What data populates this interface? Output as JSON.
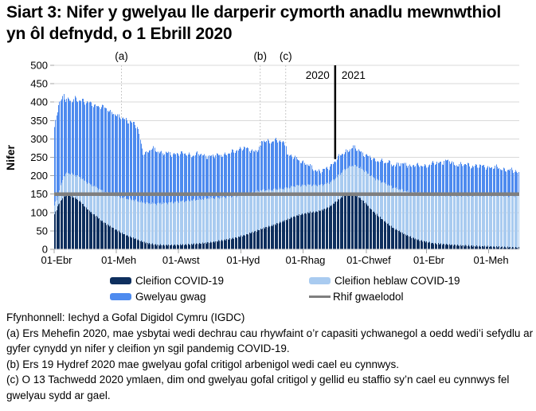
{
  "title": {
    "text": "Siart 3: Nifer y gwelyau lle darperir cymorth anadlu mewnwthiol yn ôl defnydd, o 1 Ebrill 2020"
  },
  "chart_data": {
    "type": "bar",
    "stacked": true,
    "title": "Siart 3: Nifer y gwelyau lle darperir cymorth anadlu mewnwthiol yn ôl defnydd, o 1 Ebrill 2020",
    "ylabel": "Nifer",
    "ylim": [
      0,
      500
    ],
    "yticks": [
      0,
      50,
      100,
      150,
      200,
      250,
      300,
      350,
      400,
      450,
      500
    ],
    "grid": "horizontal",
    "legend_position": "bottom",
    "start_date": "01 Ebrill 2020",
    "n_days": 456,
    "xticks": [
      {
        "day": 0,
        "label": "01-Ebr"
      },
      {
        "day": 61,
        "label": "01-Meh"
      },
      {
        "day": 122,
        "label": "01-Awst"
      },
      {
        "day": 183,
        "label": "01-Hyd"
      },
      {
        "day": 244,
        "label": "01-Rhag"
      },
      {
        "day": 306,
        "label": "01-Chwef"
      },
      {
        "day": 365,
        "label": "01-Ebr"
      },
      {
        "day": 426,
        "label": "01-Meh"
      }
    ],
    "annotations": [
      {
        "label": "(a)",
        "day": 66
      },
      {
        "label": "(b)",
        "day": 202
      },
      {
        "label": "(c)",
        "day": 227
      }
    ],
    "year_divider": {
      "day": 275.5,
      "left_label": "2020",
      "right_label": "2021",
      "color": "#000000"
    },
    "baseline": {
      "label": "Rhif gwaelodol",
      "value": 150,
      "color": "#7F7F7F"
    },
    "colors": {
      "covid": "#0E2F5E",
      "noncovid": "#A9CBF0",
      "empty": "#4E8BEF",
      "grid": "#D9D9D9",
      "tick": "#A6A6A6",
      "dotted": "#C8C8C8"
    },
    "series": [
      {
        "name": "Cleifion COVID-19",
        "color": "#0E2F5E",
        "keypoints": [
          [
            0,
            95
          ],
          [
            4,
            122
          ],
          [
            9,
            143
          ],
          [
            13,
            150
          ],
          [
            17,
            144
          ],
          [
            21,
            138
          ],
          [
            26,
            128
          ],
          [
            30,
            115
          ],
          [
            35,
            102
          ],
          [
            40,
            92
          ],
          [
            45,
            80
          ],
          [
            50,
            70
          ],
          [
            55,
            62
          ],
          [
            61,
            52
          ],
          [
            66,
            44
          ],
          [
            72,
            36
          ],
          [
            78,
            30
          ],
          [
            85,
            22
          ],
          [
            92,
            16
          ],
          [
            100,
            12
          ],
          [
            110,
            11
          ],
          [
            120,
            12
          ],
          [
            132,
            13
          ],
          [
            140,
            15
          ],
          [
            148,
            17
          ],
          [
            156,
            20
          ],
          [
            164,
            24
          ],
          [
            172,
            28
          ],
          [
            180,
            33
          ],
          [
            186,
            38
          ],
          [
            192,
            44
          ],
          [
            198,
            50
          ],
          [
            203,
            56
          ],
          [
            208,
            60
          ],
          [
            214,
            65
          ],
          [
            220,
            72
          ],
          [
            226,
            78
          ],
          [
            232,
            86
          ],
          [
            238,
            92
          ],
          [
            244,
            96
          ],
          [
            250,
            100
          ],
          [
            256,
            102
          ],
          [
            262,
            106
          ],
          [
            267,
            112
          ],
          [
            272,
            120
          ],
          [
            276,
            130
          ],
          [
            280,
            138
          ],
          [
            284,
            146
          ],
          [
            288,
            150
          ],
          [
            292,
            152
          ],
          [
            296,
            146
          ],
          [
            300,
            138
          ],
          [
            304,
            128
          ],
          [
            308,
            116
          ],
          [
            312,
            104
          ],
          [
            316,
            94
          ],
          [
            320,
            84
          ],
          [
            324,
            75
          ],
          [
            328,
            66
          ],
          [
            332,
            58
          ],
          [
            336,
            52
          ],
          [
            340,
            46
          ],
          [
            344,
            40
          ],
          [
            348,
            35
          ],
          [
            352,
            30
          ],
          [
            356,
            26
          ],
          [
            360,
            23
          ],
          [
            365,
            20
          ],
          [
            370,
            17
          ],
          [
            375,
            15
          ],
          [
            380,
            14
          ],
          [
            385,
            13
          ],
          [
            390,
            12
          ],
          [
            395,
            11
          ],
          [
            400,
            10
          ],
          [
            410,
            9
          ],
          [
            420,
            8
          ],
          [
            430,
            7
          ],
          [
            440,
            6
          ],
          [
            450,
            5
          ],
          [
            455,
            5
          ]
        ]
      },
      {
        "name": "Cleifion heblaw COVID-19",
        "color": "#A9CBF0",
        "keypoints": [
          [
            0,
            22
          ],
          [
            5,
            35
          ],
          [
            9,
            56
          ],
          [
            13,
            58
          ],
          [
            20,
            62
          ],
          [
            30,
            70
          ],
          [
            40,
            78
          ],
          [
            50,
            85
          ],
          [
            61,
            93
          ],
          [
            70,
            100
          ],
          [
            80,
            105
          ],
          [
            90,
            108
          ],
          [
            100,
            112
          ],
          [
            110,
            115
          ],
          [
            120,
            117
          ],
          [
            130,
            119
          ],
          [
            140,
            120
          ],
          [
            150,
            121
          ],
          [
            160,
            118
          ],
          [
            170,
            116
          ],
          [
            180,
            113
          ],
          [
            190,
            110
          ],
          [
            200,
            106
          ],
          [
            206,
            102
          ],
          [
            212,
            98
          ],
          [
            220,
            92
          ],
          [
            228,
            86
          ],
          [
            236,
            82
          ],
          [
            244,
            78
          ],
          [
            252,
            74
          ],
          [
            260,
            70
          ],
          [
            268,
            66
          ],
          [
            276,
            64
          ],
          [
            284,
            70
          ],
          [
            290,
            74
          ],
          [
            296,
            80
          ],
          [
            302,
            84
          ],
          [
            308,
            88
          ],
          [
            314,
            94
          ],
          [
            320,
            100
          ],
          [
            326,
            106
          ],
          [
            332,
            110
          ],
          [
            338,
            114
          ],
          [
            344,
            118
          ],
          [
            350,
            122
          ],
          [
            356,
            126
          ],
          [
            362,
            128
          ],
          [
            368,
            130
          ],
          [
            376,
            132
          ],
          [
            384,
            134
          ],
          [
            392,
            135
          ],
          [
            400,
            136
          ],
          [
            410,
            137
          ],
          [
            420,
            138
          ],
          [
            430,
            139
          ],
          [
            440,
            140
          ],
          [
            455,
            140
          ]
        ]
      },
      {
        "name": "Gwelyau gwag",
        "color": "#4E8BEF",
        "derived": "total minus patients"
      }
    ],
    "total_keypoints": [
      [
        0,
        330
      ],
      [
        2,
        365
      ],
      [
        4,
        388
      ],
      [
        6,
        400
      ],
      [
        9,
        423
      ],
      [
        11,
        406
      ],
      [
        14,
        410
      ],
      [
        17,
        400
      ],
      [
        20,
        408
      ],
      [
        23,
        404
      ],
      [
        27,
        408
      ],
      [
        30,
        400
      ],
      [
        34,
        396
      ],
      [
        38,
        392
      ],
      [
        42,
        390
      ],
      [
        46,
        388
      ],
      [
        50,
        382
      ],
      [
        54,
        374
      ],
      [
        58,
        372
      ],
      [
        61,
        363
      ],
      [
        64,
        358
      ],
      [
        67,
        354
      ],
      [
        70,
        352
      ],
      [
        74,
        348
      ],
      [
        78,
        342
      ],
      [
        81,
        330
      ],
      [
        83,
        310
      ],
      [
        85,
        286
      ],
      [
        87,
        264
      ],
      [
        90,
        262
      ],
      [
        93,
        268
      ],
      [
        96,
        272
      ],
      [
        100,
        268
      ],
      [
        104,
        264
      ],
      [
        108,
        261
      ],
      [
        112,
        259
      ],
      [
        116,
        258
      ],
      [
        120,
        262
      ],
      [
        124,
        260
      ],
      [
        128,
        258
      ],
      [
        132,
        257
      ],
      [
        136,
        256
      ],
      [
        140,
        258
      ],
      [
        144,
        256
      ],
      [
        148,
        254
      ],
      [
        152,
        253
      ],
      [
        156,
        252
      ],
      [
        160,
        255
      ],
      [
        164,
        258
      ],
      [
        168,
        257
      ],
      [
        172,
        260
      ],
      [
        176,
        266
      ],
      [
        180,
        272
      ],
      [
        184,
        275
      ],
      [
        188,
        272
      ],
      [
        192,
        269
      ],
      [
        196,
        268
      ],
      [
        200,
        271
      ],
      [
        202,
        274
      ],
      [
        203,
        292
      ],
      [
        206,
        294
      ],
      [
        209,
        295
      ],
      [
        212,
        293
      ],
      [
        215,
        294
      ],
      [
        218,
        295
      ],
      [
        221,
        292
      ],
      [
        224,
        291
      ],
      [
        226,
        290
      ],
      [
        227,
        288
      ],
      [
        228,
        256
      ],
      [
        231,
        253
      ],
      [
        234,
        250
      ],
      [
        237,
        247
      ],
      [
        240,
        243
      ],
      [
        243,
        238
      ],
      [
        246,
        232
      ],
      [
        249,
        227
      ],
      [
        252,
        222
      ],
      [
        255,
        217
      ],
      [
        258,
        213
      ],
      [
        261,
        212
      ],
      [
        264,
        214
      ],
      [
        267,
        219
      ],
      [
        270,
        226
      ],
      [
        273,
        234
      ],
      [
        276,
        242
      ],
      [
        279,
        250
      ],
      [
        282,
        258
      ],
      [
        285,
        265
      ],
      [
        288,
        270
      ],
      [
        291,
        274
      ],
      [
        293,
        277
      ],
      [
        295,
        272
      ],
      [
        298,
        268
      ],
      [
        301,
        264
      ],
      [
        304,
        259
      ],
      [
        307,
        253
      ],
      [
        310,
        248
      ],
      [
        313,
        243
      ],
      [
        316,
        240
      ],
      [
        319,
        244
      ],
      [
        322,
        238
      ],
      [
        325,
        233
      ],
      [
        328,
        236
      ],
      [
        331,
        232
      ],
      [
        334,
        229
      ],
      [
        337,
        233
      ],
      [
        340,
        228
      ],
      [
        343,
        231
      ],
      [
        346,
        230
      ],
      [
        349,
        226
      ],
      [
        352,
        229
      ],
      [
        355,
        227
      ],
      [
        358,
        225
      ],
      [
        361,
        229
      ],
      [
        364,
        227
      ],
      [
        367,
        229
      ],
      [
        370,
        231
      ],
      [
        373,
        233
      ],
      [
        376,
        235
      ],
      [
        379,
        237
      ],
      [
        382,
        239
      ],
      [
        385,
        240
      ],
      [
        388,
        236
      ],
      [
        391,
        232
      ],
      [
        394,
        230
      ],
      [
        397,
        231
      ],
      [
        400,
        228
      ],
      [
        403,
        230
      ],
      [
        406,
        228
      ],
      [
        409,
        226
      ],
      [
        412,
        228
      ],
      [
        415,
        226
      ],
      [
        418,
        224
      ],
      [
        421,
        226
      ],
      [
        424,
        224
      ],
      [
        427,
        223
      ],
      [
        430,
        222
      ],
      [
        433,
        221
      ],
      [
        436,
        220
      ],
      [
        439,
        218
      ],
      [
        442,
        217
      ],
      [
        445,
        215
      ],
      [
        448,
        213
      ],
      [
        451,
        212
      ],
      [
        455,
        209
      ]
    ]
  },
  "legend": {
    "items": [
      {
        "label": "Cleifion COVID-19",
        "color": "#0E2F5E",
        "shape": "rect"
      },
      {
        "label": "Cleifion heblaw COVID-19",
        "color": "#A9CBF0",
        "shape": "rect"
      },
      {
        "label": "Gwelyau gwag",
        "color": "#4E8BEF",
        "shape": "rect"
      },
      {
        "label": "Rhif gwaelodol",
        "color": "#7F7F7F",
        "shape": "line"
      }
    ]
  },
  "footer": {
    "source": "Ffynhonnell: Iechyd a Gofal Digidol Cymru (IGDC)",
    "note_a": "(a) Ers Mehefin 2020, mae ysbytai wedi dechrau cau rhywfaint o’r capasiti ychwanegol a oedd wedi’i sefydlu ar gyfer cynydd yn nifer y cleifion yn sgil pandemig COVID-19.",
    "note_b": "(b) Ers 19 Hydref 2020 mae gwelyau gofal critigol arbenigol wedi cael eu cynnwys.",
    "note_c": "(c) O 13 Tachwedd 2020 ymlaen, dim ond gwelyau gofal critigol y gellid eu staffio sy’n cael eu cynnwys fel gwelyau sydd ar gael."
  }
}
